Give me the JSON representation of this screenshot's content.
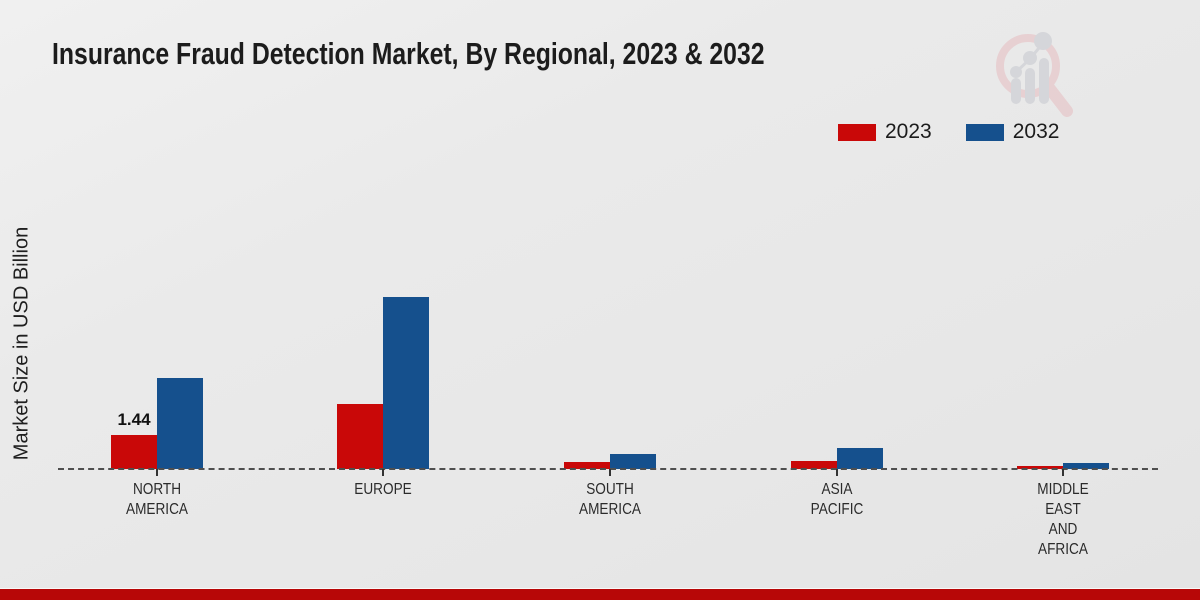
{
  "chart_data": {
    "type": "bar",
    "title": "Insurance Fraud Detection Market, By Regional, 2023 & 2032",
    "xlabel": "",
    "ylabel": "Market Size in USD Billion",
    "categories": [
      "NORTH AMERICA",
      "EUROPE",
      "SOUTH AMERICA",
      "ASIA PACIFIC",
      "MIDDLE EAST AND AFRICA"
    ],
    "category_lines": [
      [
        "NORTH",
        "AMERICA"
      ],
      [
        "EUROPE"
      ],
      [
        "SOUTH",
        "AMERICA"
      ],
      [
        "ASIA",
        "PACIFIC"
      ],
      [
        "MIDDLE",
        "EAST",
        "AND",
        "AFRICA"
      ]
    ],
    "series": [
      {
        "name": "2023",
        "color": "#c90808",
        "values": [
          1.44,
          2.75,
          0.3,
          0.35,
          0.12
        ],
        "labels": [
          "1.44",
          "",
          "",
          "",
          ""
        ]
      },
      {
        "name": "2032",
        "color": "#15508d",
        "values": [
          3.85,
          7.3,
          0.65,
          0.9,
          0.25
        ],
        "labels": [
          "",
          "",
          "",
          "",
          ""
        ]
      }
    ],
    "ylim": [
      0,
      8
    ],
    "grid": false,
    "baseline_style": "dashed",
    "legend_position": "top-right",
    "accent_colors": {
      "footer_strip": "#b70707",
      "dashed_line": "#4f4f4f"
    },
    "watermark": "magnifier-bar-chart-logo"
  }
}
